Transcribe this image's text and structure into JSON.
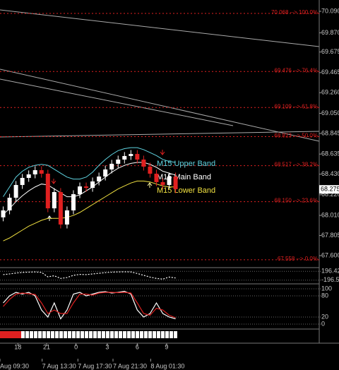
{
  "chart_data": [
    {
      "type": "candlestick",
      "xlim": [
        -0.5,
        49.5
      ],
      "ylim": [
        67.485,
        70.205
      ],
      "yticks": [
        {
          "value": 70.09,
          "label": "70.090"
        },
        {
          "value": 69.87,
          "label": "69.870"
        },
        69.675,
        69.465,
        {
          "value": 69.26,
          "label": "69.260"
        },
        {
          "value": 69.05,
          "label": "69.050"
        },
        68.845,
        68.635,
        {
          "value": 68.43,
          "label": "68.430"
        },
        {
          "value": 68.22,
          "label": "68.220"
        },
        {
          "value": 68.01,
          "label": "68.010"
        },
        67.805,
        {
          "value": 67.6,
          "label": "67.600"
        }
      ],
      "current_price": 68.275,
      "open": [
        67.99,
        68.061,
        68.19,
        68.32,
        68.392,
        68.428,
        68.471,
        68.435,
        68.082,
        68.248,
        67.917,
        68.061,
        68.226,
        68.305,
        68.291,
        68.356,
        68.406,
        68.478,
        68.536,
        68.579,
        68.615,
        68.636,
        68.579,
        68.507,
        68.435,
        68.349,
        68.32,
        68.406
      ],
      "high": [
        68.101,
        68.23,
        68.36,
        68.432,
        68.468,
        68.511,
        68.511,
        68.475,
        68.288,
        68.288,
        68.101,
        68.266,
        68.345,
        68.345,
        68.396,
        68.446,
        68.518,
        68.576,
        68.619,
        68.655,
        68.676,
        68.676,
        68.619,
        68.547,
        68.475,
        68.389,
        68.446,
        68.446
      ],
      "low": [
        67.95,
        68.021,
        68.15,
        68.28,
        68.352,
        68.388,
        68.395,
        68.042,
        68.042,
        67.877,
        67.877,
        68.021,
        68.186,
        68.251,
        68.251,
        68.316,
        68.366,
        68.438,
        68.496,
        68.539,
        68.575,
        68.539,
        68.467,
        68.395,
        68.309,
        68.28,
        68.28,
        68.237
      ],
      "close": [
        68.061,
        68.19,
        68.32,
        68.392,
        68.428,
        68.471,
        68.435,
        68.082,
        68.248,
        67.917,
        68.061,
        68.226,
        68.305,
        68.291,
        68.356,
        68.406,
        68.478,
        68.536,
        68.579,
        68.615,
        68.636,
        68.579,
        68.507,
        68.435,
        68.349,
        68.32,
        68.406,
        68.277
      ],
      "up_color": "#ffffff",
      "down_color": "#e02020",
      "series": [
        {
          "name": "M15 Upper Band",
          "color": "#5fd3e0",
          "values": [
            68.2,
            68.3,
            68.4,
            68.46,
            68.5,
            68.52,
            68.53,
            68.52,
            68.48,
            68.44,
            68.4,
            68.38,
            68.38,
            68.4,
            68.45,
            68.52,
            68.58,
            68.63,
            68.67,
            68.69,
            68.7,
            68.7,
            68.68,
            68.65,
            68.62,
            68.58,
            68.56,
            68.55
          ]
        },
        {
          "name": "M15 Main Band",
          "color": "#ffffff",
          "values": [
            68.02,
            68.08,
            68.15,
            68.21,
            68.26,
            68.3,
            68.33,
            68.32,
            68.28,
            68.24,
            68.2,
            68.2,
            68.22,
            68.26,
            68.3,
            68.35,
            68.4,
            68.45,
            68.49,
            68.52,
            68.54,
            68.55,
            68.55,
            68.53,
            68.5,
            68.46,
            68.44,
            68.42
          ]
        },
        {
          "name": "M15 Lower Band",
          "color": "#f0e040",
          "values": [
            67.75,
            67.78,
            67.82,
            67.86,
            67.9,
            67.93,
            67.96,
            67.98,
            67.98,
            67.98,
            67.99,
            68.01,
            68.04,
            68.08,
            68.12,
            68.16,
            68.2,
            68.24,
            68.28,
            68.31,
            68.34,
            68.36,
            68.36,
            68.35,
            68.33,
            68.31,
            68.3,
            68.3
          ]
        }
      ],
      "fib_levels": [
        {
          "value": 70.068,
          "label": "70.068 --> 100.0%"
        },
        {
          "value": 69.476,
          "label": "69.476 --> 76.4%"
        },
        {
          "value": 69.109,
          "label": "69.109 --> 61.8%"
        },
        {
          "value": 68.813,
          "label": "68.813 --> 50.0%"
        },
        {
          "value": 68.517,
          "label": "68.517 --> 38.2%"
        },
        {
          "value": 68.15,
          "label": "68.150 --> 23.6%"
        },
        {
          "value": 67.558,
          "label": "67.558 --> 0.0%"
        }
      ],
      "fib_color": "#e02020",
      "xticks": [
        {
          "value": 2.3,
          "label": "18"
        },
        {
          "value": 6.8,
          "label": "21"
        },
        {
          "value": 11.4,
          "label": "0"
        },
        {
          "value": 16.3,
          "label": "3"
        },
        {
          "value": 21,
          "label": "6"
        },
        {
          "value": 25.6,
          "label": "9"
        }
      ],
      "time_ticks": [
        {
          "value": -0.5,
          "label": "Aug 09:30"
        },
        {
          "value": 6.1,
          "label": "7 Aug 13:30"
        },
        {
          "value": 11.7,
          "label": "7 Aug 17:30"
        },
        {
          "value": 17.2,
          "label": "7 Aug 21:30"
        },
        {
          "value": 23.1,
          "label": "8 Aug 01:30"
        }
      ]
    },
    {
      "type": "line",
      "ylim": [
        -300,
        300
      ],
      "yticks": [
        196.425,
        -196.54
      ],
      "series": [
        {
          "color": "#ffffff",
          "values": [
            50,
            80,
            120,
            150,
            160,
            170,
            150,
            -50,
            0,
            -120,
            -80,
            20,
            60,
            50,
            80,
            110,
            140,
            160,
            170,
            175,
            170,
            100,
            20,
            -60,
            -120,
            -150,
            -60,
            -100
          ]
        }
      ]
    },
    {
      "type": "line",
      "ylim": [
        -10,
        110
      ],
      "yticks": [
        100,
        80,
        20,
        0
      ],
      "series": [
        {
          "color": "#ffffff",
          "values": [
            60,
            80,
            90,
            85,
            90,
            80,
            40,
            20,
            60,
            15,
            40,
            85,
            90,
            80,
            85,
            90,
            92,
            88,
            90,
            93,
            85,
            40,
            20,
            30,
            60,
            30,
            20,
            15
          ]
        },
        {
          "color": "#e02020",
          "values": [
            50,
            70,
            85,
            88,
            86,
            84,
            60,
            30,
            40,
            30,
            30,
            60,
            85,
            85,
            82,
            88,
            90,
            90,
            89,
            90,
            88,
            60,
            30,
            25,
            45,
            40,
            25,
            18
          ]
        }
      ]
    }
  ]
}
